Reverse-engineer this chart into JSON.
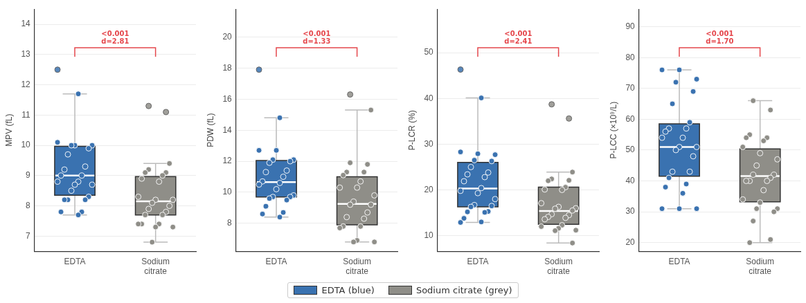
{
  "chart_data": [
    {
      "type": "box",
      "ylabel": "MPV (fL)",
      "categories": [
        "EDTA",
        "Sodium citrate"
      ],
      "ylim": [
        6.5,
        14.5
      ],
      "yticks": [
        7,
        8,
        9,
        10,
        11,
        12,
        13,
        14
      ],
      "grid": "y",
      "legend": "bottom",
      "marker": "circle",
      "annotations": [
        "<0.001",
        "d=2.81"
      ],
      "series": [
        {
          "name": "EDTA (blue)",
          "type": "box",
          "color": "#3a72b0",
          "boxes": [
            {
              "low": 7.7,
              "q1": 8.35,
              "median": 9.0,
              "q3": 9.97,
              "high": 11.7,
              "outliers": [
                12.5
              ]
            },
            null
          ]
        },
        {
          "name": "Sodium citrate (grey)",
          "type": "box",
          "color": "#8f8e88",
          "boxes": [
            null,
            {
              "low": 6.8,
              "q1": 7.7,
              "median": 8.15,
              "q3": 8.97,
              "high": 9.4,
              "outliers": [
                11.3,
                11.1
              ]
            }
          ]
        },
        {
          "type": "scatter",
          "color": "#3a72b0",
          "x": [
            "EDTA",
            "EDTA",
            "EDTA",
            "EDTA",
            "EDTA",
            "EDTA",
            "EDTA",
            "EDTA",
            "EDTA",
            "EDTA",
            "EDTA",
            "EDTA",
            "EDTA",
            "EDTA",
            "EDTA",
            "EDTA",
            "EDTA",
            "EDTA",
            "EDTA",
            "EDTA",
            "EDTA",
            "EDTA",
            "EDTA"
          ],
          "values": [
            11.7,
            10.1,
            10.0,
            10.0,
            10.0,
            9.9,
            9.7,
            9.3,
            9.2,
            9.0,
            9.0,
            8.8,
            8.8,
            8.7,
            8.7,
            8.5,
            8.3,
            8.2,
            8.2,
            8.2,
            7.8,
            7.8,
            7.7
          ]
        },
        {
          "type": "scatter",
          "color": "#8f8e88",
          "x": [
            "Sodium citrate",
            "Sodium citrate",
            "Sodium citrate",
            "Sodium citrate",
            "Sodium citrate",
            "Sodium citrate",
            "Sodium citrate",
            "Sodium citrate",
            "Sodium citrate",
            "Sodium citrate",
            "Sodium citrate",
            "Sodium citrate",
            "Sodium citrate",
            "Sodium citrate",
            "Sodium citrate",
            "Sodium citrate",
            "Sodium citrate",
            "Sodium citrate",
            "Sodium citrate",
            "Sodium citrate",
            "Sodium citrate",
            "Sodium citrate"
          ],
          "values": [
            9.4,
            9.2,
            9.1,
            9.1,
            9.0,
            8.9,
            8.8,
            8.3,
            8.2,
            8.2,
            8.1,
            8.0,
            7.9,
            7.8,
            7.7,
            7.7,
            7.4,
            7.4,
            7.4,
            7.3,
            7.3,
            6.8
          ]
        }
      ]
    },
    {
      "type": "box",
      "ylabel": "PDW (fL)",
      "categories": [
        "EDTA",
        "Sodium citrate"
      ],
      "ylim": [
        6.2,
        21.8
      ],
      "yticks": [
        8,
        10,
        12,
        14,
        16,
        18,
        20
      ],
      "grid": "y",
      "marker": "circle",
      "annotations": [
        "<0.001",
        "d=1.33"
      ],
      "series": [
        {
          "type": "box",
          "color": "#3a72b0",
          "boxes": [
            {
              "low": 8.4,
              "q1": 9.7,
              "median": 10.65,
              "q3": 12.05,
              "high": 14.8,
              "outliers": [
                17.9
              ]
            },
            null
          ]
        },
        {
          "type": "box",
          "color": "#8f8e88",
          "boxes": [
            null,
            {
              "low": 6.8,
              "q1": 7.9,
              "median": 9.25,
              "q3": 11.0,
              "high": 15.3,
              "outliers": [
                16.3
              ]
            }
          ]
        },
        {
          "type": "scatter",
          "color": "#3a72b0",
          "x": [
            "EDTA",
            "EDTA",
            "EDTA",
            "EDTA",
            "EDTA",
            "EDTA",
            "EDTA",
            "EDTA",
            "EDTA",
            "EDTA",
            "EDTA",
            "EDTA",
            "EDTA",
            "EDTA",
            "EDTA",
            "EDTA",
            "EDTA",
            "EDTA",
            "EDTA",
            "EDTA",
            "EDTA",
            "EDTA",
            "EDTA"
          ],
          "values": [
            14.8,
            12.7,
            12.7,
            12.1,
            12.1,
            12.0,
            11.9,
            11.4,
            11.3,
            11.0,
            10.7,
            10.6,
            10.5,
            10.2,
            9.8,
            9.7,
            9.7,
            9.6,
            9.5,
            9.1,
            8.7,
            8.6,
            8.4
          ]
        },
        {
          "type": "scatter",
          "color": "#8f8e88",
          "x": [
            "Sodium citrate",
            "Sodium citrate",
            "Sodium citrate",
            "Sodium citrate",
            "Sodium citrate",
            "Sodium citrate",
            "Sodium citrate",
            "Sodium citrate",
            "Sodium citrate",
            "Sodium citrate",
            "Sodium citrate",
            "Sodium citrate",
            "Sodium citrate",
            "Sodium citrate",
            "Sodium citrate",
            "Sodium citrate",
            "Sodium citrate",
            "Sodium citrate",
            "Sodium citrate",
            "Sodium citrate",
            "Sodium citrate",
            "Sodium citrate"
          ],
          "values": [
            15.3,
            11.9,
            11.8,
            11.3,
            11.3,
            11.1,
            10.7,
            10.3,
            10.3,
            9.8,
            9.4,
            9.2,
            9.2,
            8.7,
            8.4,
            8.3,
            7.8,
            7.8,
            7.7,
            6.9,
            6.8,
            6.8
          ]
        }
      ]
    },
    {
      "type": "box",
      "ylabel": "P-LCR (%)",
      "categories": [
        "EDTA",
        "Sodium citrate"
      ],
      "ylim": [
        6.6,
        59.5
      ],
      "yticks": [
        10,
        20,
        30,
        40,
        50
      ],
      "grid": "y",
      "marker": "circle",
      "annotations": [
        "<0.001",
        "d=2.41"
      ],
      "series": [
        {
          "type": "box",
          "color": "#3a72b0",
          "boxes": [
            {
              "low": 12.9,
              "q1": 16.3,
              "median": 20.3,
              "q3": 26.0,
              "high": 40.1,
              "outliers": [
                46.3
              ]
            },
            null
          ]
        },
        {
          "type": "box",
          "color": "#8f8e88",
          "boxes": [
            null,
            {
              "low": 8.4,
              "q1": 12.5,
              "median": 15.4,
              "q3": 20.6,
              "high": 23.9,
              "outliers": [
                38.7,
                35.6
              ]
            }
          ]
        },
        {
          "type": "scatter",
          "color": "#3a72b0",
          "x": [
            "EDTA",
            "EDTA",
            "EDTA",
            "EDTA",
            "EDTA",
            "EDTA",
            "EDTA",
            "EDTA",
            "EDTA",
            "EDTA",
            "EDTA",
            "EDTA",
            "EDTA",
            "EDTA",
            "EDTA",
            "EDTA",
            "EDTA",
            "EDTA",
            "EDTA",
            "EDTA",
            "EDTA",
            "EDTA",
            "EDTA",
            "EDTA"
          ],
          "values": [
            40.1,
            28.3,
            27.9,
            27.7,
            26.5,
            26.3,
            25.0,
            23.8,
            23.4,
            22.8,
            21.9,
            20.4,
            19.8,
            19.3,
            18.0,
            16.7,
            16.5,
            16.3,
            15.3,
            15.2,
            15.1,
            13.8,
            13.0,
            12.9
          ]
        },
        {
          "type": "scatter",
          "color": "#8f8e88",
          "x": [
            "Sodium citrate",
            "Sodium citrate",
            "Sodium citrate",
            "Sodium citrate",
            "Sodium citrate",
            "Sodium citrate",
            "Sodium citrate",
            "Sodium citrate",
            "Sodium citrate",
            "Sodium citrate",
            "Sodium citrate",
            "Sodium citrate",
            "Sodium citrate",
            "Sodium citrate",
            "Sodium citrate",
            "Sodium citrate",
            "Sodium citrate",
            "Sodium citrate",
            "Sodium citrate",
            "Sodium citrate",
            "Sodium citrate",
            "Sodium citrate",
            "Sodium citrate"
          ],
          "values": [
            23.9,
            22.4,
            22.1,
            22.0,
            20.6,
            20.1,
            20.0,
            17.1,
            16.3,
            16.0,
            15.9,
            15.5,
            14.7,
            14.5,
            14.1,
            13.9,
            13.6,
            12.3,
            12.0,
            11.6,
            11.2,
            11.1,
            8.4
          ]
        }
      ]
    },
    {
      "type": "box",
      "ylabel": "P-LCC (×10⁹/L)",
      "categories": [
        "EDTA",
        "Sodium citrate"
      ],
      "ylim": [
        17.2,
        95.7
      ],
      "yticks": [
        20,
        30,
        40,
        50,
        60,
        70,
        80,
        90
      ],
      "grid": "y",
      "marker": "circle",
      "annotations": [
        "<0.001",
        "d=1.70"
      ],
      "series": [
        {
          "type": "box",
          "color": "#3a72b0",
          "boxes": [
            {
              "low": 31,
              "q1": 41.5,
              "median": 51,
              "q3": 58.5,
              "high": 76
            },
            null
          ]
        },
        {
          "type": "box",
          "color": "#8f8e88",
          "boxes": [
            null,
            {
              "low": 20,
              "q1": 33.2,
              "median": 41.6,
              "q3": 50.4,
              "high": 66
            }
          ]
        },
        {
          "type": "scatter",
          "color": "#3a72b0",
          "x": [
            "EDTA",
            "EDTA",
            "EDTA",
            "EDTA",
            "EDTA",
            "EDTA",
            "EDTA",
            "EDTA",
            "EDTA",
            "EDTA",
            "EDTA",
            "EDTA",
            "EDTA",
            "EDTA",
            "EDTA",
            "EDTA",
            "EDTA",
            "EDTA",
            "EDTA",
            "EDTA",
            "EDTA",
            "EDTA",
            "EDTA",
            "EDTA",
            "EDTA"
          ],
          "values": [
            76,
            76,
            73,
            72,
            69,
            65,
            59,
            57,
            57,
            56,
            54,
            54,
            51,
            51,
            50,
            48,
            43,
            43,
            41,
            39,
            38,
            36,
            31,
            31,
            31
          ]
        },
        {
          "type": "scatter",
          "color": "#8f8e88",
          "x": [
            "Sodium citrate",
            "Sodium citrate",
            "Sodium citrate",
            "Sodium citrate",
            "Sodium citrate",
            "Sodium citrate",
            "Sodium citrate",
            "Sodium citrate",
            "Sodium citrate",
            "Sodium citrate",
            "Sodium citrate",
            "Sodium citrate",
            "Sodium citrate",
            "Sodium citrate",
            "Sodium citrate",
            "Sodium citrate",
            "Sodium citrate",
            "Sodium citrate",
            "Sodium citrate",
            "Sodium citrate",
            "Sodium citrate",
            "Sodium citrate",
            "Sodium citrate",
            "Sodium citrate",
            "Sodium citrate"
          ],
          "values": [
            66,
            63,
            55,
            54,
            54,
            53,
            51,
            49,
            47,
            45,
            42,
            42,
            41,
            40,
            40,
            40,
            37,
            34,
            33,
            31,
            31,
            30,
            27,
            21,
            20
          ]
        }
      ]
    }
  ]
}
